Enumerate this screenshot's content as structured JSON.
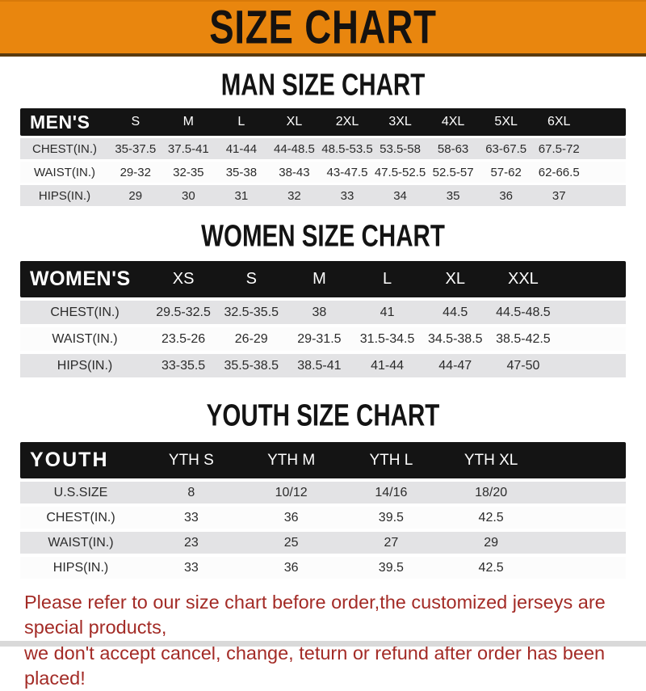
{
  "banner": {
    "title": "SIZE CHART"
  },
  "colors": {
    "banner_orange": "#E9860E",
    "band_black": "#141414",
    "row_gray": "#E3E3E5",
    "note_red": "#A32B26"
  },
  "men": {
    "heading": "MAN SIZE CHART",
    "header": [
      "MEN'S",
      "S",
      "M",
      "L",
      "XL",
      "2XL",
      "3XL",
      "4XL",
      "5XL",
      "6XL"
    ],
    "rows": [
      {
        "label": "CHEST(IN.)",
        "values": [
          "35-37.5",
          "37.5-41",
          "41-44",
          "44-48.5",
          "48.5-53.5",
          "53.5-58",
          "58-63",
          "63-67.5",
          "67.5-72"
        ]
      },
      {
        "label": "WAIST(IN.)",
        "values": [
          "29-32",
          "32-35",
          "35-38",
          "38-43",
          "43-47.5",
          "47.5-52.5",
          "52.5-57",
          "57-62",
          "62-66.5"
        ]
      },
      {
        "label": "HIPS(IN.)",
        "values": [
          "29",
          "30",
          "31",
          "32",
          "33",
          "34",
          "35",
          "36",
          "37"
        ]
      }
    ]
  },
  "women": {
    "heading": "WOMEN SIZE CHART",
    "header": [
      "WOMEN'S",
      "XS",
      "S",
      "M",
      "L",
      "XL",
      "XXL"
    ],
    "rows": [
      {
        "label": "CHEST(IN.)",
        "values": [
          "29.5-32.5",
          "32.5-35.5",
          "38",
          "41",
          "44.5",
          "44.5-48.5"
        ]
      },
      {
        "label": "WAIST(IN.)",
        "values": [
          "23.5-26",
          "26-29",
          "29-31.5",
          "31.5-34.5",
          "34.5-38.5",
          "38.5-42.5"
        ]
      },
      {
        "label": "HIPS(IN.)",
        "values": [
          "33-35.5",
          "35.5-38.5",
          "38.5-41",
          "41-44",
          "44-47",
          "47-50"
        ]
      }
    ]
  },
  "youth": {
    "heading": "YOUTH SIZE CHART",
    "header": [
      "YOUTH",
      "YTH S",
      "YTH M",
      "YTH L",
      "YTH XL"
    ],
    "rows": [
      {
        "label": "U.S.SIZE",
        "values": [
          "8",
          "10/12",
          "14/16",
          "18/20"
        ]
      },
      {
        "label": "CHEST(IN.)",
        "values": [
          "33",
          "36",
          "39.5",
          "42.5"
        ]
      },
      {
        "label": "WAIST(IN.)",
        "values": [
          "23",
          "25",
          "27",
          "29"
        ]
      },
      {
        "label": "HIPS(IN.)",
        "values": [
          "33",
          "36",
          "39.5",
          "42.5"
        ]
      }
    ]
  },
  "footer": {
    "line1": "Please refer to our size chart before order,the customized jerseys are special products,",
    "line2": "we don't accept cancel, change, teturn or refund after order has been placed!"
  }
}
